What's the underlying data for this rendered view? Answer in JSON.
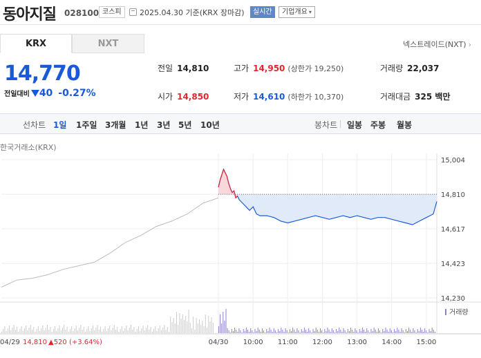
{
  "header": {
    "stock_name": "동아지질",
    "stock_code": "028100",
    "market": "코스피",
    "date_text": "2025.04.30 기준(KRX 장마감)",
    "realtime": "실시간",
    "company_info": "기업개요"
  },
  "tabs": {
    "krx": "KRX",
    "nxt": "NXT",
    "nxt_link": "넥스트레이드(NXT)"
  },
  "price": {
    "current": "14,770",
    "change_label": "전일대비",
    "change_value": "40",
    "change_pct": "-0.27%"
  },
  "quotes": {
    "prev_label": "전일",
    "prev_value": "14,810",
    "open_label": "시가",
    "open_value": "14,850",
    "high_label": "고가",
    "high_value": "14,950",
    "upper_limit": "(상한가 19,250)",
    "low_label": "저가",
    "low_value": "14,610",
    "lower_limit": "(하한가 10,370)",
    "volume_label": "거래량",
    "volume_value": "22,037",
    "amount_label": "거래대금",
    "amount_value": "325 백만"
  },
  "period_bar": {
    "line_label": "선차트",
    "periods": [
      "1일",
      "1주일",
      "3개월",
      "1년",
      "3년",
      "5년",
      "10년"
    ],
    "candle_label": "봉차트",
    "candles": [
      "일봉",
      "주봉",
      "월봉"
    ]
  },
  "source_label": "한국거래소(KRX)",
  "footer": {
    "prev_date": "04/29",
    "prev_close": "14,810",
    "prev_change": "▲520 (+3.64%)",
    "volume_label": "거래량"
  },
  "colors": {
    "up": "#e0262f",
    "down": "#1a5ad8",
    "prev_line": "#bbbbbb"
  },
  "chart_data": {
    "type": "line",
    "ylim": [
      14230,
      15004
    ],
    "y_ticks": [
      "15,004",
      "14,810",
      "14,617",
      "14,423",
      "14,230"
    ],
    "y_tick_values": [
      15004,
      14810,
      14617,
      14423,
      14230
    ],
    "x_ticks": [
      "04/30",
      "10:00",
      "11:00",
      "12:00",
      "13:00",
      "14:00",
      "15:00"
    ],
    "x_tick_times": [
      9.0,
      10.0,
      11.0,
      12.0,
      13.0,
      14.0,
      15.0
    ],
    "baseline": 14810,
    "prev_day_series": {
      "name": "04/29",
      "x": [
        0,
        0.5,
        1,
        1.5,
        2,
        2.5,
        3,
        3.5,
        4,
        4.5,
        5,
        5.5,
        6,
        6.5,
        7
      ],
      "values": [
        14290,
        14330,
        14340,
        14360,
        14390,
        14410,
        14430,
        14480,
        14540,
        14580,
        14630,
        14660,
        14700,
        14760,
        14790
      ]
    },
    "today_series": {
      "name": "04/30",
      "x": [
        9.0,
        9.05,
        9.1,
        9.15,
        9.2,
        9.25,
        9.3,
        9.35,
        9.4,
        9.45,
        9.5,
        9.55,
        9.6,
        9.7,
        9.8,
        9.9,
        10.0,
        10.1,
        10.2,
        10.4,
        10.6,
        10.8,
        11.0,
        11.2,
        11.4,
        11.6,
        11.8,
        12.0,
        12.2,
        12.4,
        12.6,
        12.8,
        13.0,
        13.2,
        13.4,
        13.6,
        13.8,
        14.0,
        14.2,
        14.4,
        14.6,
        14.8,
        15.0,
        15.1,
        15.2,
        15.3
      ],
      "values": [
        14850,
        14890,
        14920,
        14950,
        14930,
        14910,
        14870,
        14840,
        14820,
        14830,
        14790,
        14800,
        14780,
        14760,
        14740,
        14720,
        14740,
        14700,
        14690,
        14690,
        14680,
        14660,
        14650,
        14660,
        14670,
        14680,
        14690,
        14680,
        14670,
        14680,
        14690,
        14680,
        14690,
        14680,
        14670,
        14680,
        14680,
        14670,
        14660,
        14650,
        14640,
        14660,
        14680,
        14690,
        14700,
        14770
      ]
    }
  }
}
